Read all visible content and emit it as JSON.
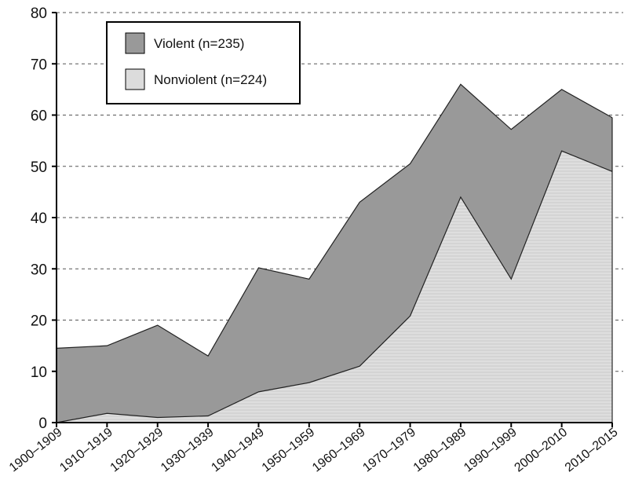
{
  "chart_data": {
    "type": "area",
    "stacked": false,
    "categories": [
      "1900–1909",
      "1910–1919",
      "1920–1929",
      "1930–1939",
      "1940–1949",
      "1950–1959",
      "1960–1969",
      "1970–1979",
      "1980–1989",
      "1990–1999",
      "2000–2010",
      "2010–2015"
    ],
    "series": [
      {
        "name": "Violent (n=235)",
        "values": [
          14.5,
          15,
          19,
          13,
          30.2,
          28,
          43,
          50.5,
          66,
          57.2,
          65,
          59.5
        ],
        "color": "#999999"
      },
      {
        "name": "Nonviolent (n=224)",
        "values": [
          0,
          1.8,
          1,
          1.3,
          6,
          7.8,
          11,
          20.8,
          44,
          28,
          53,
          49
        ],
        "color": "#dcdcdc"
      }
    ],
    "ylim": [
      0,
      80
    ],
    "yticks": [
      0,
      10,
      20,
      30,
      40,
      50,
      60,
      70,
      80
    ],
    "grid": "horizontal-dashed",
    "legend_position": "top-left",
    "title": "",
    "xlabel": "",
    "ylabel": ""
  }
}
